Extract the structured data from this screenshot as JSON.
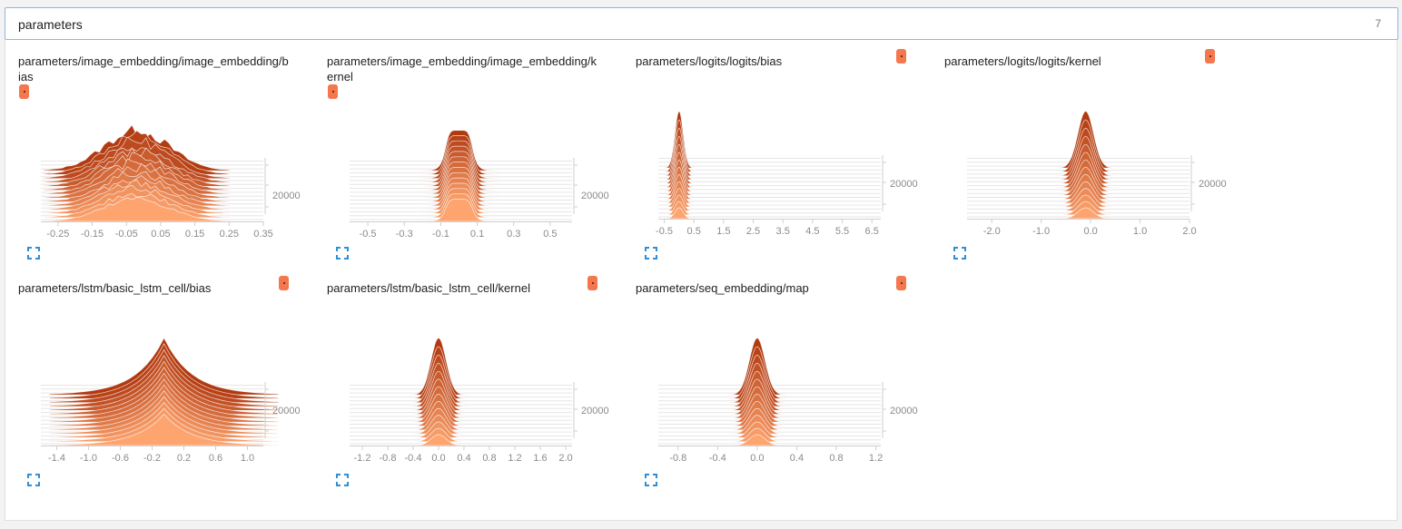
{
  "search": {
    "query": "parameters",
    "count": "7"
  },
  "colors": {
    "accent": "#f4774e",
    "dark": "#b23a10",
    "light": "#fda46f",
    "icon": "#2e8fd6"
  },
  "cards": [
    {
      "title": "parameters/image_embedding/image_embedding/bias",
      "badge_position": "below-title",
      "chart_data": {
        "type": "histogram",
        "xlim": [
          -0.3,
          0.35
        ],
        "x_ticks": [
          "-0.25",
          "-0.15",
          "-0.05",
          "0.05",
          "0.15",
          "0.25",
          "0.35"
        ],
        "y_ticks": [
          "20000"
        ],
        "peak_x": -0.02,
        "peak_half_width": 0.17,
        "peak_height": 0.75,
        "shape": "broad-noisy"
      }
    },
    {
      "title": "parameters/image_embedding/image_embedding/kernel",
      "badge_position": "below-title",
      "chart_data": {
        "type": "histogram",
        "xlim": [
          -0.6,
          0.62
        ],
        "x_ticks": [
          "-0.5",
          "-0.3",
          "-0.1",
          "0.1",
          "0.3",
          "0.5"
        ],
        "y_ticks": [
          "20000"
        ],
        "peak_x": 0.0,
        "peak_half_width": 0.14,
        "peak_height": 0.75,
        "shape": "plateau"
      }
    },
    {
      "title": "parameters/logits/logits/bias",
      "badge_position": "right",
      "chart_data": {
        "type": "histogram",
        "xlim": [
          -0.7,
          6.8
        ],
        "x_ticks": [
          "-0.5",
          "0.5",
          "1.5",
          "2.5",
          "3.5",
          "4.5",
          "5.5",
          "6.5"
        ],
        "y_ticks": [
          "20000"
        ],
        "peak_x": 0.0,
        "peak_half_width": 0.35,
        "peak_height": 0.95,
        "shape": "spike-left"
      }
    },
    {
      "title": "parameters/logits/logits/kernel",
      "badge_position": "right",
      "chart_data": {
        "type": "histogram",
        "xlim": [
          -2.5,
          2.0
        ],
        "x_ticks": [
          "-2.0",
          "-1.0",
          "0.0",
          "1.0",
          "2.0"
        ],
        "y_ticks": [
          "20000"
        ],
        "peak_x": -0.1,
        "peak_half_width": 0.4,
        "peak_height": 0.95,
        "shape": "spike"
      }
    },
    {
      "title": "parameters/lstm/basic_lstm_cell/bias",
      "badge_position": "right",
      "chart_data": {
        "type": "histogram",
        "xlim": [
          -1.6,
          1.2
        ],
        "x_ticks": [
          "-1.4",
          "-1.0",
          "-0.6",
          "-0.2",
          "0.2",
          "0.6",
          "1.0"
        ],
        "y_ticks": [
          "20000"
        ],
        "peak_x": -0.05,
        "peak_half_width": 0.9,
        "peak_height": 0.95,
        "shape": "wide-spike"
      }
    },
    {
      "title": "parameters/lstm/basic_lstm_cell/kernel",
      "badge_position": "right",
      "chart_data": {
        "type": "histogram",
        "xlim": [
          -1.4,
          2.1
        ],
        "x_ticks": [
          "-1.2",
          "-0.8",
          "-0.4",
          "0.0",
          "0.4",
          "0.8",
          "1.2",
          "1.6",
          "2.0"
        ],
        "y_ticks": [
          "20000"
        ],
        "peak_x": 0.0,
        "peak_half_width": 0.3,
        "peak_height": 0.95,
        "shape": "spike"
      }
    },
    {
      "title": "parameters/seq_embedding/map",
      "badge_position": "right",
      "chart_data": {
        "type": "histogram",
        "xlim": [
          -1.0,
          1.25
        ],
        "x_ticks": [
          "-0.8",
          "-0.4",
          "0.0",
          "0.4",
          "0.8",
          "1.2"
        ],
        "y_ticks": [
          "20000"
        ],
        "peak_x": 0.0,
        "peak_half_width": 0.2,
        "peak_height": 0.95,
        "shape": "spike"
      }
    }
  ]
}
